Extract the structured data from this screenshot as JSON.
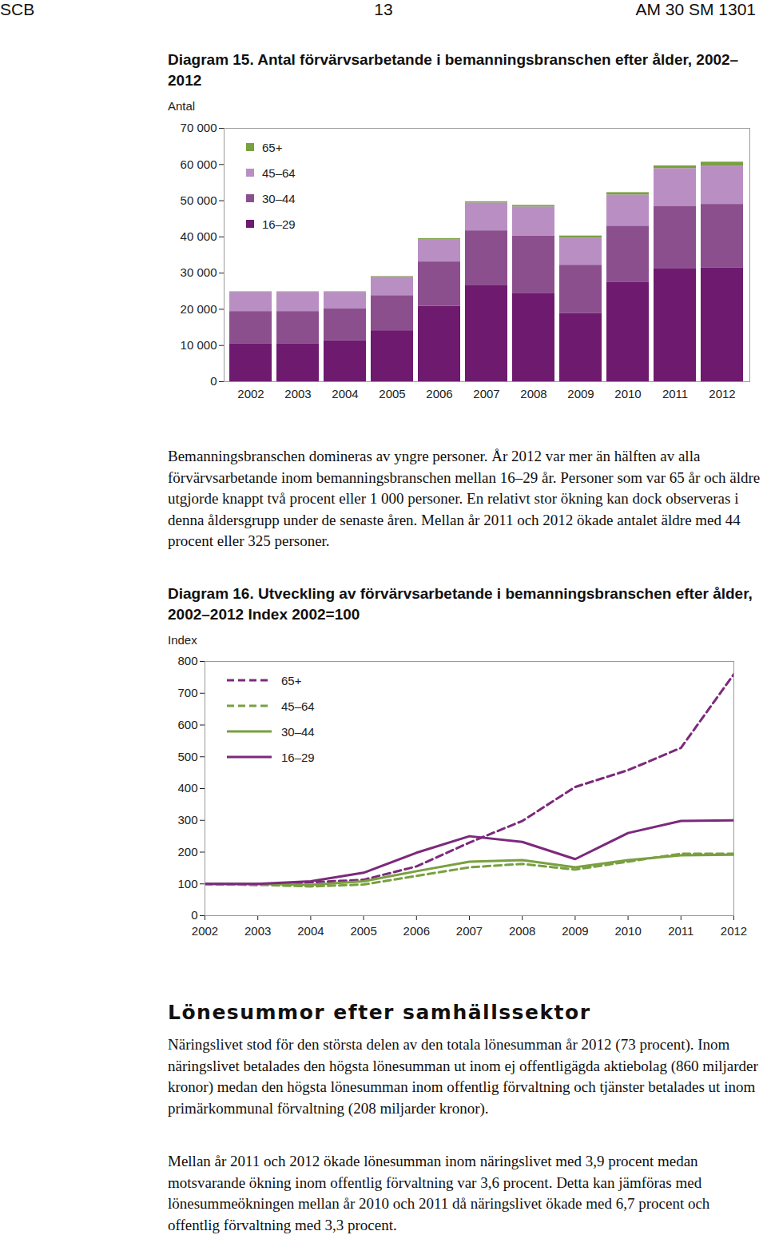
{
  "header": {
    "left": "SCB",
    "center": "13",
    "right": "AM 30 SM 1301"
  },
  "chart_data": [
    {
      "type": "bar",
      "title": "Diagram 15. Antal förvärvsarbetande i bemanningsbranschen efter ålder, 2002–2012",
      "y_label": "Antal",
      "stacked": true,
      "legend": "top-left",
      "categories": [
        "2002",
        "2003",
        "2004",
        "2005",
        "2006",
        "2007",
        "2008",
        "2009",
        "2010",
        "2011",
        "2012"
      ],
      "series": [
        {
          "name": "16–29",
          "color": "#6e1a6e",
          "values": [
            10400,
            10400,
            11300,
            14100,
            20800,
            26500,
            24300,
            18800,
            27400,
            31300,
            31500
          ]
        },
        {
          "name": "30–44",
          "color": "#8c4f8e",
          "values": [
            9000,
            9000,
            8800,
            9700,
            12300,
            15200,
            15900,
            13400,
            15600,
            17200,
            17500
          ]
        },
        {
          "name": "45–64",
          "color": "#b98fc3",
          "values": [
            5300,
            5300,
            4600,
            5100,
            6200,
            7700,
            8100,
            7500,
            8600,
            10400,
            10600
          ]
        },
        {
          "name": "65+",
          "color": "#79a040",
          "values": [
            140,
            135,
            150,
            160,
            215,
            320,
            415,
            565,
            640,
            740,
            1065
          ]
        }
      ],
      "ylim": [
        0,
        70000
      ],
      "yticks": [
        0,
        {
          "value": 10000,
          "label": "10 000"
        },
        {
          "value": 20000,
          "label": "20 000"
        },
        {
          "value": 30000,
          "label": "30 000"
        },
        {
          "value": 40000,
          "label": "40 000"
        },
        {
          "value": 50000,
          "label": "50 000"
        },
        {
          "value": 60000,
          "label": "60 000"
        },
        {
          "value": 70000,
          "label": "70 000"
        }
      ],
      "grid": false
    },
    {
      "type": "line",
      "title": "Diagram 16. Utveckling av förvärvsarbetande i bemanningsbranschen efter ålder, 2002–2012 Index 2002=100",
      "y_label": "Index",
      "legend": "top-left",
      "x": [
        2002,
        2003,
        2004,
        2005,
        2006,
        2007,
        2008,
        2009,
        2010,
        2011,
        2012
      ],
      "series": [
        {
          "name": "65+",
          "color": "#7b2a7b",
          "line_style": "dashed",
          "values": [
            100,
            97,
            105,
            113,
            155,
            230,
            298,
            405,
            458,
            528,
            760
          ]
        },
        {
          "name": "45–64",
          "color": "#79a040",
          "line_style": "dashed",
          "values": [
            100,
            97,
            92,
            98,
            125,
            152,
            163,
            145,
            170,
            195,
            195
          ]
        },
        {
          "name": "30–44",
          "color": "#79a040",
          "line_style": "solid",
          "values": [
            100,
            100,
            97,
            108,
            140,
            170,
            175,
            152,
            175,
            190,
            192
          ]
        },
        {
          "name": "16–29",
          "color": "#7b2a7b",
          "line_style": "solid",
          "values": [
            100,
            100,
            108,
            135,
            198,
            250,
            232,
            178,
            260,
            298,
            300
          ]
        }
      ],
      "xlim": [
        2002,
        2012
      ],
      "xticks": [
        2002,
        2003,
        2004,
        2005,
        2006,
        2007,
        2008,
        2009,
        2010,
        2011,
        2012
      ],
      "ylim": [
        0,
        800
      ],
      "yticks": [
        0,
        100,
        200,
        300,
        400,
        500,
        600,
        700,
        800
      ],
      "grid": false
    }
  ],
  "paragraph_after_diagram_15": "Bemanningsbranschen domineras av yngre personer. År 2012 var mer än hälften av alla förvärvsarbetande inom bemanningsbranschen mellan 16–29 år. Personer som var 65 år och äldre utgjorde knappt två procent eller 1 000 personer. En relativt stor ökning kan dock observeras i denna åldersgrupp under de senaste åren. Mellan år 2011 och 2012 ökade antalet äldre med 44 procent eller 325 personer.",
  "section_heading": "Lönesummor efter samhällssektor",
  "section_paragraphs": [
    "Näringslivet stod för den största delen av den totala lönesumman år 2012 (73 procent). Inom näringslivet betalades den högsta lönesumman ut inom ej offentligägda aktiebolag (860 miljarder kronor) medan den högsta lönesumman inom offentlig förvaltning och tjänster betalades ut inom primärkommunal förvaltning (208 miljarder kronor).",
    "Mellan år 2011 och 2012 ökade lönesumman inom näringslivet med 3,9 procent medan motsvarande ökning inom offentlig förvaltning var 3,6 procent. Detta kan jämföras med lönesummeökningen mellan år 2010 och 2011 då näringslivet ökade med 6,7 procent och offentlig förvaltning med 3,3 procent."
  ]
}
